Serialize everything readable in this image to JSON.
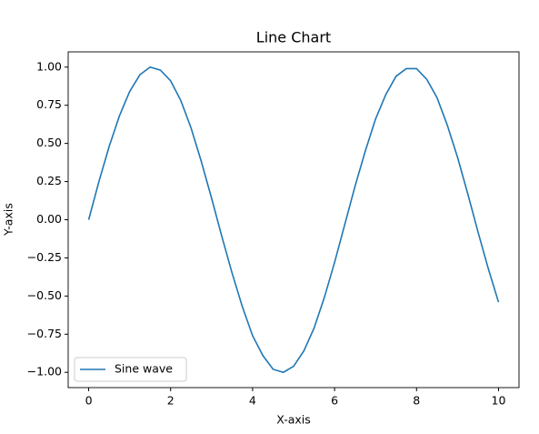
{
  "chart_data": {
    "type": "line",
    "title": "Line Chart",
    "x_label": "X-axis",
    "y_label": "Y-axis",
    "x": [
      0,
      0.25,
      0.5,
      0.75,
      1,
      1.25,
      1.5,
      1.75,
      2,
      2.25,
      2.5,
      2.75,
      3,
      3.25,
      3.5,
      3.75,
      4,
      4.25,
      4.5,
      4.75,
      5,
      5.25,
      5.5,
      5.75,
      6,
      6.25,
      6.5,
      6.75,
      7,
      7.25,
      7.5,
      7.75,
      8,
      8.25,
      8.5,
      8.75,
      9,
      9.25,
      9.5,
      9.75,
      10
    ],
    "series": [
      {
        "name": "Sine wave",
        "color": "#1f77b4",
        "values": [
          0,
          0.25,
          0.48,
          0.68,
          0.84,
          0.95,
          1.0,
          0.98,
          0.91,
          0.78,
          0.6,
          0.38,
          0.14,
          -0.11,
          -0.35,
          -0.57,
          -0.76,
          -0.89,
          -0.98,
          -1.0,
          -0.96,
          -0.86,
          -0.71,
          -0.51,
          -0.28,
          -0.03,
          0.22,
          0.45,
          0.66,
          0.82,
          0.94,
          0.99,
          0.99,
          0.92,
          0.8,
          0.62,
          0.41,
          0.17,
          -0.08,
          -0.32,
          -0.54
        ]
      }
    ],
    "xlim": [
      -0.5,
      10.5
    ],
    "ylim": [
      -1.1,
      1.1
    ],
    "xticks": [
      0,
      2,
      4,
      6,
      8,
      10
    ],
    "yticks": [
      {
        "value": -1,
        "label": "−1.00"
      },
      {
        "value": -0.75,
        "label": "−0.75"
      },
      {
        "value": -0.5,
        "label": "−0.50"
      },
      {
        "value": -0.25,
        "label": "−0.25"
      },
      {
        "value": 0,
        "label": "0.00"
      },
      {
        "value": 0.25,
        "label": "0.25"
      },
      {
        "value": 0.5,
        "label": "0.50"
      },
      {
        "value": 0.75,
        "label": "0.75"
      },
      {
        "value": 1,
        "label": "1.00"
      }
    ],
    "grid": false,
    "legend": "lower-left"
  }
}
